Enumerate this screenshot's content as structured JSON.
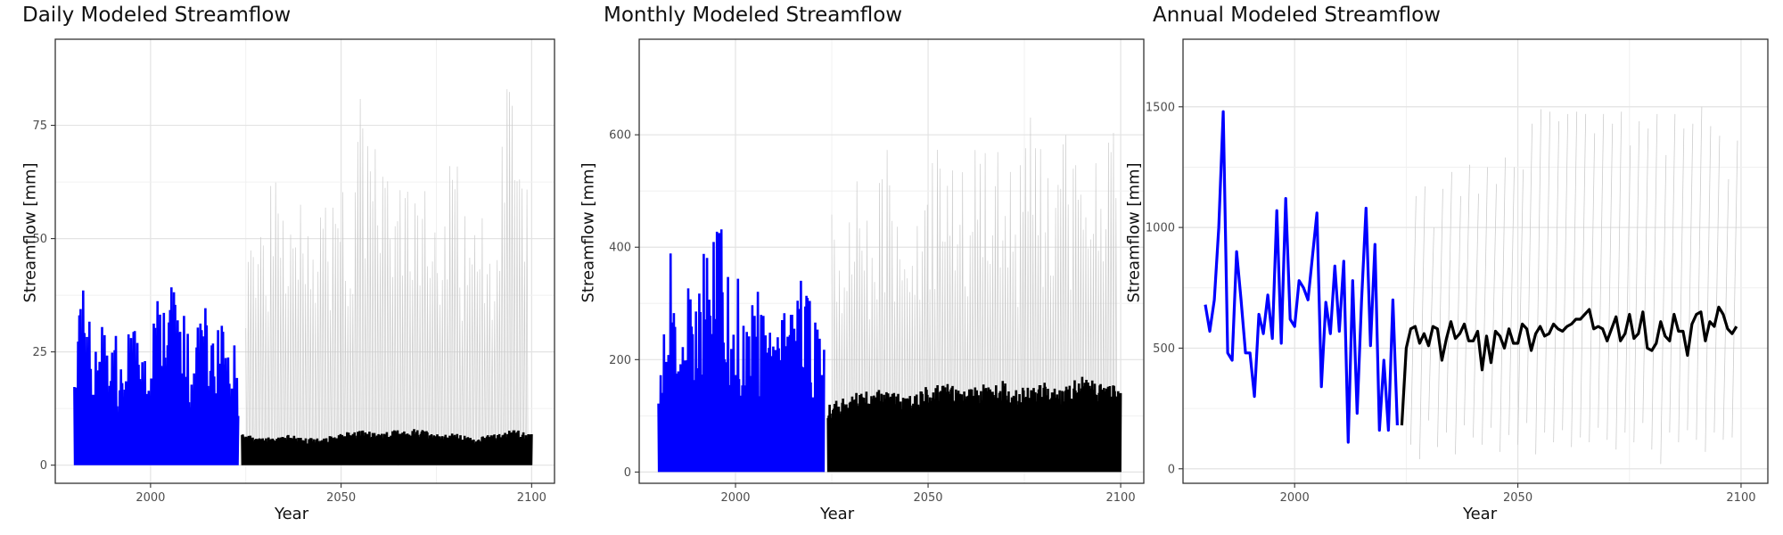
{
  "chart_data": [
    {
      "type": "line",
      "title": "Daily Modeled Streamflow",
      "xlabel": "Year",
      "ylabel": "Streamflow [mm]",
      "xlim": [
        1975,
        2106
      ],
      "ylim": [
        -4,
        94
      ],
      "xticks": [
        2000,
        2050,
        2100
      ],
      "yticks": [
        0,
        25,
        50,
        75
      ],
      "grid": true,
      "series": [
        {
          "role": "projected-range",
          "color": "#cccccc",
          "x": [
            2025,
            2027,
            2030,
            2033,
            2035,
            2038,
            2041,
            2044,
            2047,
            2050,
            2053,
            2055,
            2058,
            2061,
            2064,
            2067,
            2070,
            2073,
            2076,
            2079,
            2082,
            2085,
            2088,
            2091,
            2094,
            2097,
            2099
          ],
          "y": [
            55,
            58,
            61,
            63,
            59,
            77,
            62,
            60,
            58,
            64,
            55,
            88,
            65,
            85,
            52,
            75,
            58,
            62,
            50,
            79,
            55,
            68,
            53,
            60,
            89,
            65,
            64
          ]
        },
        {
          "role": "historical",
          "color": "#0000ff",
          "x": [
            1980,
            1981,
            1983,
            1985,
            1987,
            1989,
            1991,
            1993,
            1995,
            1997,
            1999,
            2001,
            2003,
            2004,
            2006,
            2008,
            2010,
            2012,
            2014,
            2016,
            2018,
            2020,
            2022,
            2023
          ],
          "y": [
            23,
            31,
            47,
            27,
            42,
            22,
            29,
            28,
            32,
            35,
            23,
            33,
            41,
            38,
            42,
            40,
            28,
            29,
            37,
            29,
            36,
            26,
            28,
            24
          ]
        },
        {
          "role": "projected-mean",
          "color": "#000000",
          "x": [
            2024,
            2030,
            2035,
            2040,
            2045,
            2050,
            2055,
            2060,
            2065,
            2070,
            2075,
            2080,
            2085,
            2090,
            2095,
            2100
          ],
          "y": [
            7,
            6,
            7,
            6,
            6,
            7,
            8,
            7,
            8,
            8,
            7,
            7,
            6,
            7,
            8,
            7
          ]
        }
      ]
    },
    {
      "type": "line",
      "title": "Monthly Modeled Streamflow",
      "xlabel": "Year",
      "ylabel": "Streamflow [mm]",
      "xlim": [
        1975,
        2106
      ],
      "ylim": [
        -20,
        770
      ],
      "xticks": [
        2000,
        2050,
        2100
      ],
      "yticks": [
        0,
        200,
        400,
        600
      ],
      "grid": true,
      "series": [
        {
          "role": "projected-range",
          "color": "#cccccc",
          "x": [
            2025,
            2028,
            2031,
            2034,
            2037,
            2040,
            2043,
            2046,
            2049,
            2052,
            2055,
            2058,
            2061,
            2064,
            2067,
            2070,
            2073,
            2076,
            2079,
            2082,
            2085,
            2088,
            2091,
            2094,
            2097,
            2099
          ],
          "y": [
            470,
            440,
            560,
            480,
            520,
            610,
            450,
            500,
            470,
            600,
            570,
            620,
            540,
            680,
            590,
            610,
            510,
            640,
            600,
            560,
            690,
            540,
            610,
            590,
            630,
            590
          ]
        },
        {
          "role": "historical",
          "color": "#0000ff",
          "x": [
            1980,
            1981,
            1983,
            1985,
            1987,
            1989,
            1991,
            1993,
            1995,
            1997,
            1999,
            2001,
            2003,
            2005,
            2007,
            2009,
            2011,
            2013,
            2015,
            2017,
            2019,
            2021,
            2023
          ],
          "y": [
            190,
            240,
            440,
            250,
            350,
            300,
            390,
            450,
            450,
            430,
            300,
            360,
            300,
            320,
            340,
            250,
            320,
            280,
            300,
            410,
            330,
            280,
            240
          ]
        },
        {
          "role": "projected-mean",
          "color": "#000000",
          "x": [
            2024,
            2030,
            2035,
            2040,
            2045,
            2050,
            2055,
            2060,
            2065,
            2070,
            2075,
            2080,
            2085,
            2090,
            2095,
            2100
          ],
          "y": [
            120,
            140,
            145,
            150,
            135,
            155,
            160,
            150,
            160,
            165,
            150,
            160,
            155,
            170,
            165,
            150
          ]
        }
      ]
    },
    {
      "type": "line",
      "title": "Annual Modeled Streamflow",
      "xlabel": "Year",
      "ylabel": "Streamflow [mm]",
      "xlim": [
        1975,
        2106
      ],
      "ylim": [
        -60,
        1780
      ],
      "xticks": [
        2000,
        2050,
        2100
      ],
      "yticks": [
        0,
        500,
        1000,
        1500
      ],
      "grid": true,
      "series": [
        {
          "role": "projected-range",
          "color": "#cccccc",
          "x": [
            2026,
            2028,
            2030,
            2032,
            2034,
            2036,
            2038,
            2040,
            2042,
            2044,
            2046,
            2048,
            2050,
            2052,
            2054,
            2056,
            2058,
            2060,
            2062,
            2064,
            2066,
            2068,
            2070,
            2072,
            2074,
            2076,
            2078,
            2080,
            2082,
            2084,
            2086,
            2088,
            2090,
            2092,
            2094,
            2096,
            2098
          ],
          "y": [
            [
              100,
              1130
            ],
            [
              40,
              1170
            ],
            [
              200,
              1000
            ],
            [
              90,
              1160
            ],
            [
              150,
              1230
            ],
            [
              60,
              1130
            ],
            [
              180,
              1260
            ],
            [
              130,
              1140
            ],
            [
              100,
              1250
            ],
            [
              170,
              1180
            ],
            [
              70,
              1290
            ],
            [
              140,
              1250
            ],
            [
              100,
              1240
            ],
            [
              190,
              1430
            ],
            [
              60,
              1490
            ],
            [
              150,
              1480
            ],
            [
              110,
              1440
            ],
            [
              160,
              1470
            ],
            [
              90,
              1480
            ],
            [
              130,
              1470
            ],
            [
              110,
              1390
            ],
            [
              170,
              1470
            ],
            [
              120,
              1430
            ],
            [
              80,
              1480
            ],
            [
              150,
              1340
            ],
            [
              110,
              1440
            ],
            [
              190,
              1410
            ],
            [
              80,
              1470
            ],
            [
              20,
              1300
            ],
            [
              150,
              1470
            ],
            [
              110,
              1410
            ],
            [
              160,
              1430
            ],
            [
              120,
              1500
            ],
            [
              70,
              1420
            ],
            [
              150,
              1380
            ],
            [
              120,
              1200
            ],
            [
              130,
              1360
            ]
          ]
        },
        {
          "role": "historical",
          "color": "#0000ff",
          "x": [
            1980,
            1981,
            1982,
            1983,
            1984,
            1985,
            1986,
            1987,
            1988,
            1989,
            1990,
            1991,
            1992,
            1993,
            1994,
            1995,
            1996,
            1997,
            1998,
            1999,
            2000,
            2001,
            2002,
            2003,
            2004,
            2005,
            2006,
            2007,
            2008,
            2009,
            2010,
            2011,
            2012,
            2013,
            2014,
            2015,
            2016,
            2017,
            2018,
            2019,
            2020,
            2021,
            2022,
            2023
          ],
          "y": [
            680,
            570,
            700,
            1000,
            1480,
            480,
            450,
            900,
            700,
            480,
            480,
            300,
            640,
            560,
            720,
            540,
            1070,
            520,
            1120,
            620,
            590,
            780,
            750,
            700,
            880,
            1060,
            340,
            690,
            560,
            840,
            570,
            860,
            110,
            780,
            230,
            700,
            1080,
            510,
            930,
            160,
            450,
            160,
            700,
            180
          ]
        },
        {
          "role": "projected-mean",
          "color": "#000000",
          "x": [
            2024,
            2025,
            2026,
            2027,
            2028,
            2029,
            2030,
            2031,
            2032,
            2033,
            2034,
            2035,
            2036,
            2037,
            2038,
            2039,
            2040,
            2041,
            2042,
            2043,
            2044,
            2045,
            2046,
            2047,
            2048,
            2049,
            2050,
            2051,
            2052,
            2053,
            2054,
            2055,
            2056,
            2057,
            2058,
            2059,
            2060,
            2061,
            2062,
            2063,
            2064,
            2065,
            2066,
            2067,
            2068,
            2069,
            2070,
            2071,
            2072,
            2073,
            2074,
            2075,
            2076,
            2077,
            2078,
            2079,
            2080,
            2081,
            2082,
            2083,
            2084,
            2085,
            2086,
            2087,
            2088,
            2089,
            2090,
            2091,
            2092,
            2093,
            2094,
            2095,
            2096,
            2097,
            2098,
            2099
          ],
          "y": [
            180,
            500,
            580,
            590,
            520,
            560,
            510,
            590,
            580,
            450,
            540,
            610,
            540,
            560,
            600,
            530,
            530,
            570,
            410,
            550,
            440,
            570,
            550,
            500,
            580,
            520,
            520,
            600,
            580,
            490,
            560,
            590,
            550,
            560,
            600,
            580,
            570,
            590,
            600,
            620,
            620,
            640,
            660,
            580,
            590,
            580,
            530,
            580,
            630,
            530,
            560,
            640,
            540,
            560,
            650,
            500,
            490,
            520,
            610,
            550,
            530,
            640,
            570,
            570,
            470,
            600,
            640,
            650,
            530,
            610,
            590,
            670,
            640,
            580,
            560,
            590
          ]
        }
      ]
    }
  ]
}
